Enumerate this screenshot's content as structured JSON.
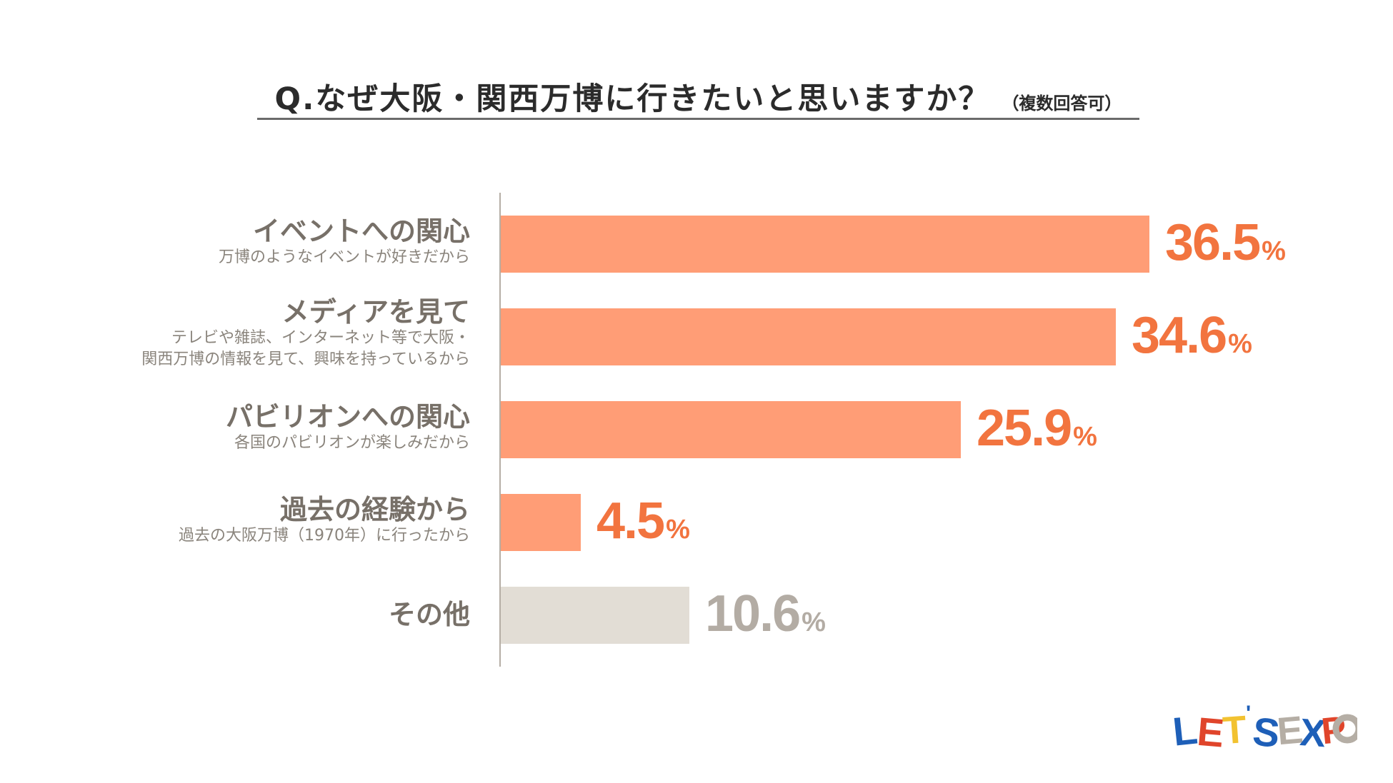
{
  "chart_data": {
    "type": "bar",
    "orientation": "horizontal",
    "title": "Q.なぜ大阪・関西万博に行きたいと思いますか？",
    "subtitle": "（複数回答可）",
    "categories": [
      {
        "name": "イベントへの関心",
        "description": [
          "万博のようなイベントが好きだから"
        ],
        "value": 36.5,
        "value_text": "36.5",
        "unit": "%",
        "color": "#ff9d76",
        "text_color": "#f2743f"
      },
      {
        "name": "メディアを見て",
        "description": [
          "テレビや雑誌、インターネット等で大阪・",
          "関西万博の情報を見て、興味を持っているから"
        ],
        "value": 34.6,
        "value_text": "34.6",
        "unit": "%",
        "color": "#ff9d76",
        "text_color": "#f2743f"
      },
      {
        "name": "パビリオンへの関心",
        "description": [
          "各国のパビリオンが楽しみだから"
        ],
        "value": 25.9,
        "value_text": "25.9",
        "unit": "%",
        "color": "#ff9d76",
        "text_color": "#f2743f"
      },
      {
        "name": "過去の経験から",
        "description": [
          "過去の大阪万博（1970年）に行ったから"
        ],
        "value": 4.5,
        "value_text": "4.5",
        "unit": "%",
        "color": "#ff9d76",
        "text_color": "#f2743f"
      },
      {
        "name": "その他",
        "description": [],
        "value": 10.6,
        "value_text": "10.6",
        "unit": "%",
        "color": "#e2ddd5",
        "text_color": "#b3aca4"
      }
    ],
    "xlim": [
      0,
      36.5
    ],
    "grid": false,
    "legend": "none"
  },
  "logo": {
    "text": "LET'S EXPO",
    "colors": [
      "#1e5fb8",
      "#e0452b",
      "#f2c230",
      "#b5aea5"
    ]
  }
}
